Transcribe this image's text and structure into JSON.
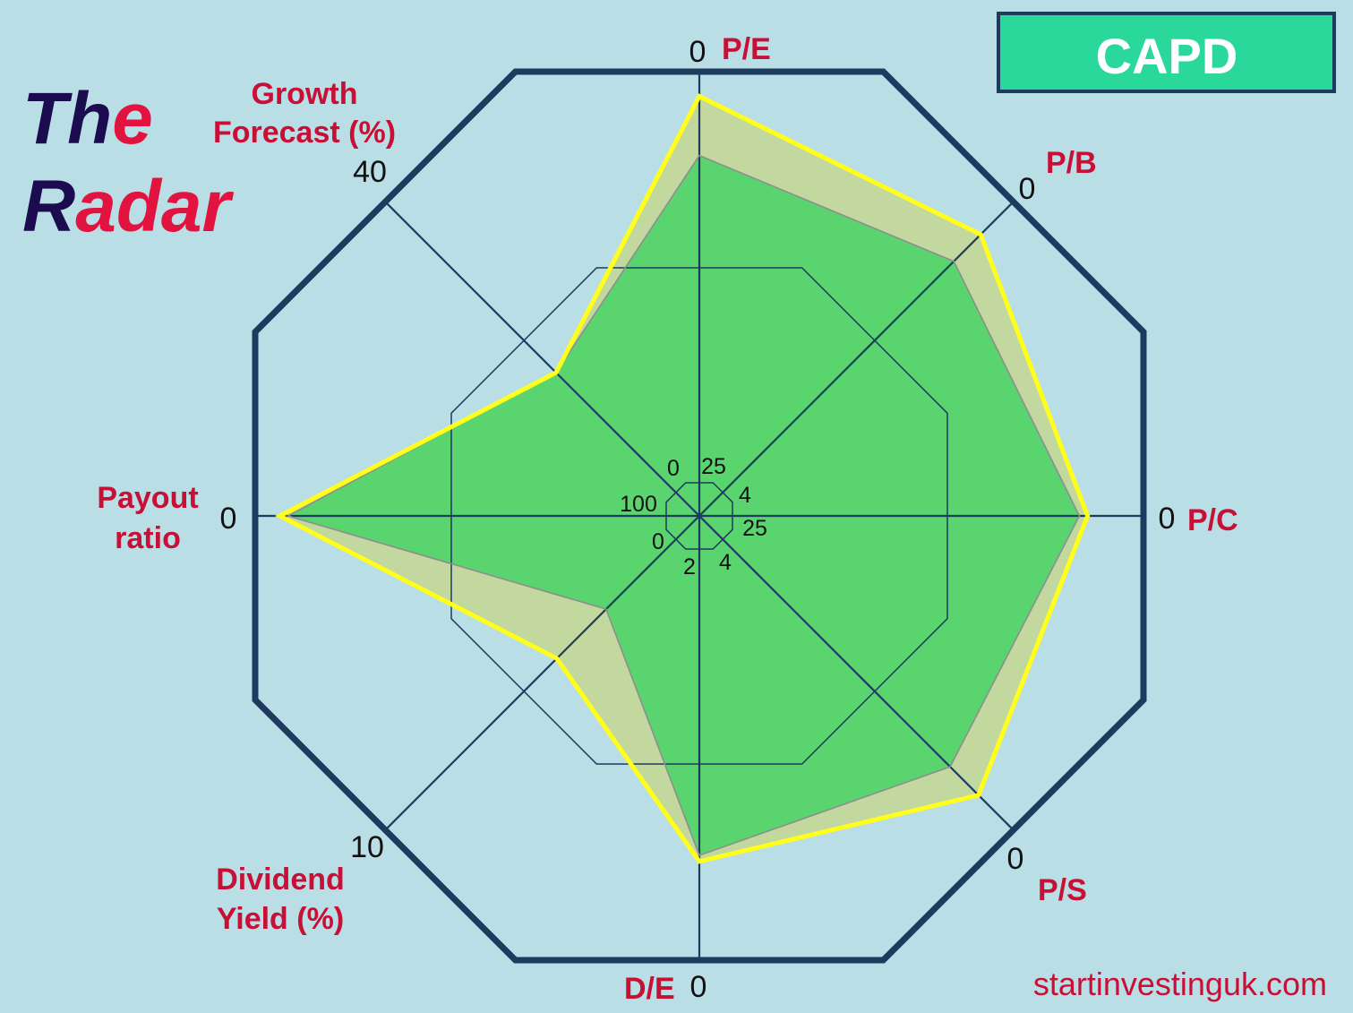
{
  "colors": {
    "background": "#badee6",
    "navy": "#1d3a5f",
    "title_dark": "#1b0b4f",
    "title_red": "#e2133f",
    "accent_red": "#c80f35",
    "badge_fill": "#2ad89b",
    "badge_text": "#ffffff",
    "number_text": "#111111"
  },
  "header": {
    "title": [
      {
        "dark": "Th",
        "red": "e"
      },
      {
        "dark": "R",
        "red": "adar"
      }
    ],
    "badge": "CAPD"
  },
  "chart_data": {
    "type": "radar",
    "axes": [
      {
        "label": [
          "P/E"
        ],
        "inner": 25,
        "outer": 0
      },
      {
        "label": [
          "P/B"
        ],
        "inner": 4,
        "outer": 0
      },
      {
        "label": [
          "P/C"
        ],
        "inner": 25,
        "outer": 0
      },
      {
        "label": [
          "P/S"
        ],
        "inner": 4,
        "outer": 0
      },
      {
        "label": [
          "D/E"
        ],
        "inner": 2,
        "outer": 0
      },
      {
        "label": [
          "Dividend",
          "Yield (%)"
        ],
        "inner": 0,
        "outer": 10
      },
      {
        "label": [
          "Payout",
          "ratio"
        ],
        "inner": 100,
        "outer": 0
      },
      {
        "label": [
          "Growth",
          "Forecast (%)"
        ],
        "inner": 0,
        "outer": 40
      }
    ],
    "series": [
      {
        "line_color": "#ffff1a",
        "fill_color": "#c3d89f",
        "values": [
          1.5,
          0.45,
          3.4,
          0.48,
          0.48,
          4.1,
          6,
          16.5
        ]
      },
      {
        "line_color": "#8e8e8e",
        "fill_color": "#5ad46e",
        "values": [
          5.1,
          0.82,
          3.9,
          0.87,
          0.51,
          2.4,
          8,
          16.5
        ]
      }
    ]
  },
  "footer": {
    "source": "startinvestinguk.com"
  }
}
